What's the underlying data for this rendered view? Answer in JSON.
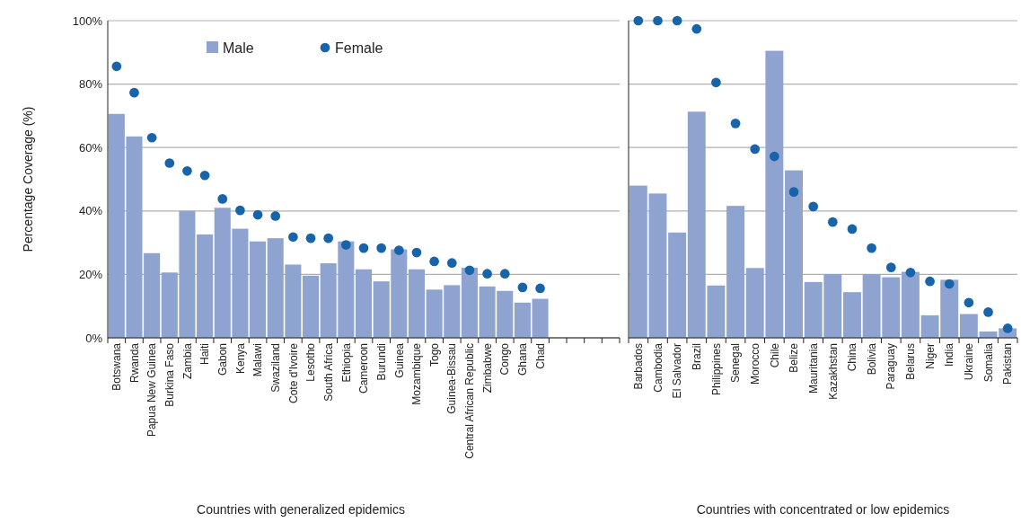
{
  "chart_data": [
    {
      "type": "bar",
      "xlabel": "Countries with generalized epidemics",
      "ylabel": "Percentage Coverage (%)",
      "categories": [
        "Botswana",
        "Rwanda",
        "Papua New Guinea",
        "Burkina Faso",
        "Zambia",
        "Haiti",
        "Gabon",
        "Kenya",
        "Malawi",
        "Swaziland",
        "Cote d'Ivoire",
        "Lesotho",
        "South Africa",
        "Ethiopia",
        "Cameroon",
        "Burundi",
        "Guinea",
        "Mozambique",
        "Togo",
        "Guinea-Bissau",
        "Central African Republic",
        "Zimbabwe",
        "Congo",
        "Ghana",
        "Chad",
        null,
        null,
        null,
        null
      ],
      "series": [
        {
          "name": "Male",
          "color": "#8fa3d0",
          "values": [
            70.6,
            63.5,
            26.7,
            20.6,
            40,
            32.6,
            41,
            34.4,
            30.4,
            31.4,
            23.1,
            19.6,
            23.5,
            30.4,
            21.6,
            17.8,
            27.9,
            21.6,
            15.2,
            16.6,
            22.1,
            16.2,
            14.8,
            11.1,
            12.3,
            null,
            null,
            null,
            null
          ]
        },
        {
          "name": "Female",
          "type": "scatter",
          "color": "#1864ab",
          "values": [
            85.6,
            77.3,
            63.1,
            55.1,
            52.6,
            51.2,
            43.8,
            40.2,
            38.8,
            38.4,
            31.8,
            31.4,
            31.4,
            29.3,
            28.3,
            28.3,
            27.6,
            26.9,
            24.1,
            23.6,
            21.3,
            20.2,
            20.2,
            15.9,
            15.6,
            null,
            null,
            null,
            null
          ]
        }
      ],
      "ylim": [
        0,
        100
      ],
      "yticks": [
        {
          "value": 0,
          "label": "0%"
        },
        {
          "value": 20,
          "label": "20%"
        },
        {
          "value": 40,
          "label": "40%"
        },
        {
          "value": 60,
          "label": "60%"
        },
        {
          "value": 80,
          "label": "80%"
        },
        {
          "value": 100,
          "label": "100%"
        }
      ],
      "grid": "y",
      "legend": "top left",
      "marker": "circle"
    },
    {
      "type": "bar",
      "xlabel": "Countries with concentrated or low epidemics",
      "categories": [
        "Barbados",
        "Cambodia",
        "El Salvador",
        "Brazil",
        "Philippines",
        "Senegal",
        "Morocco",
        "Chile",
        "Belize",
        "Mauritania",
        "Kazakhstan",
        "China",
        "Bolivia",
        "Paraguay",
        "Belarus",
        "Niger",
        "India",
        "Ukraine",
        "Somalia",
        "Pakistan"
      ],
      "series": [
        {
          "color": "#8fa3d0",
          "values": [
            48,
            45.5,
            33.2,
            71.3,
            16.5,
            41.6,
            22,
            90.5,
            52.8,
            17.6,
            20.1,
            14.4,
            20.1,
            19.1,
            20.8,
            7.1,
            18.3,
            7.5,
            2,
            3
          ]
        },
        {
          "type": "scatter",
          "color": "#1864ab",
          "values": [
            100,
            100,
            100,
            97.4,
            80.5,
            67.6,
            59.5,
            57.2,
            46,
            41.4,
            36.5,
            34.3,
            28.3,
            22.2,
            20.6,
            17.8,
            17,
            11.1,
            8.1,
            3
          ]
        }
      ],
      "ylim": [
        0,
        100
      ],
      "yticks": [
        0,
        20,
        40,
        60,
        80,
        100
      ],
      "tick_labels": "x",
      "grid": "y",
      "marker": "circle"
    }
  ]
}
